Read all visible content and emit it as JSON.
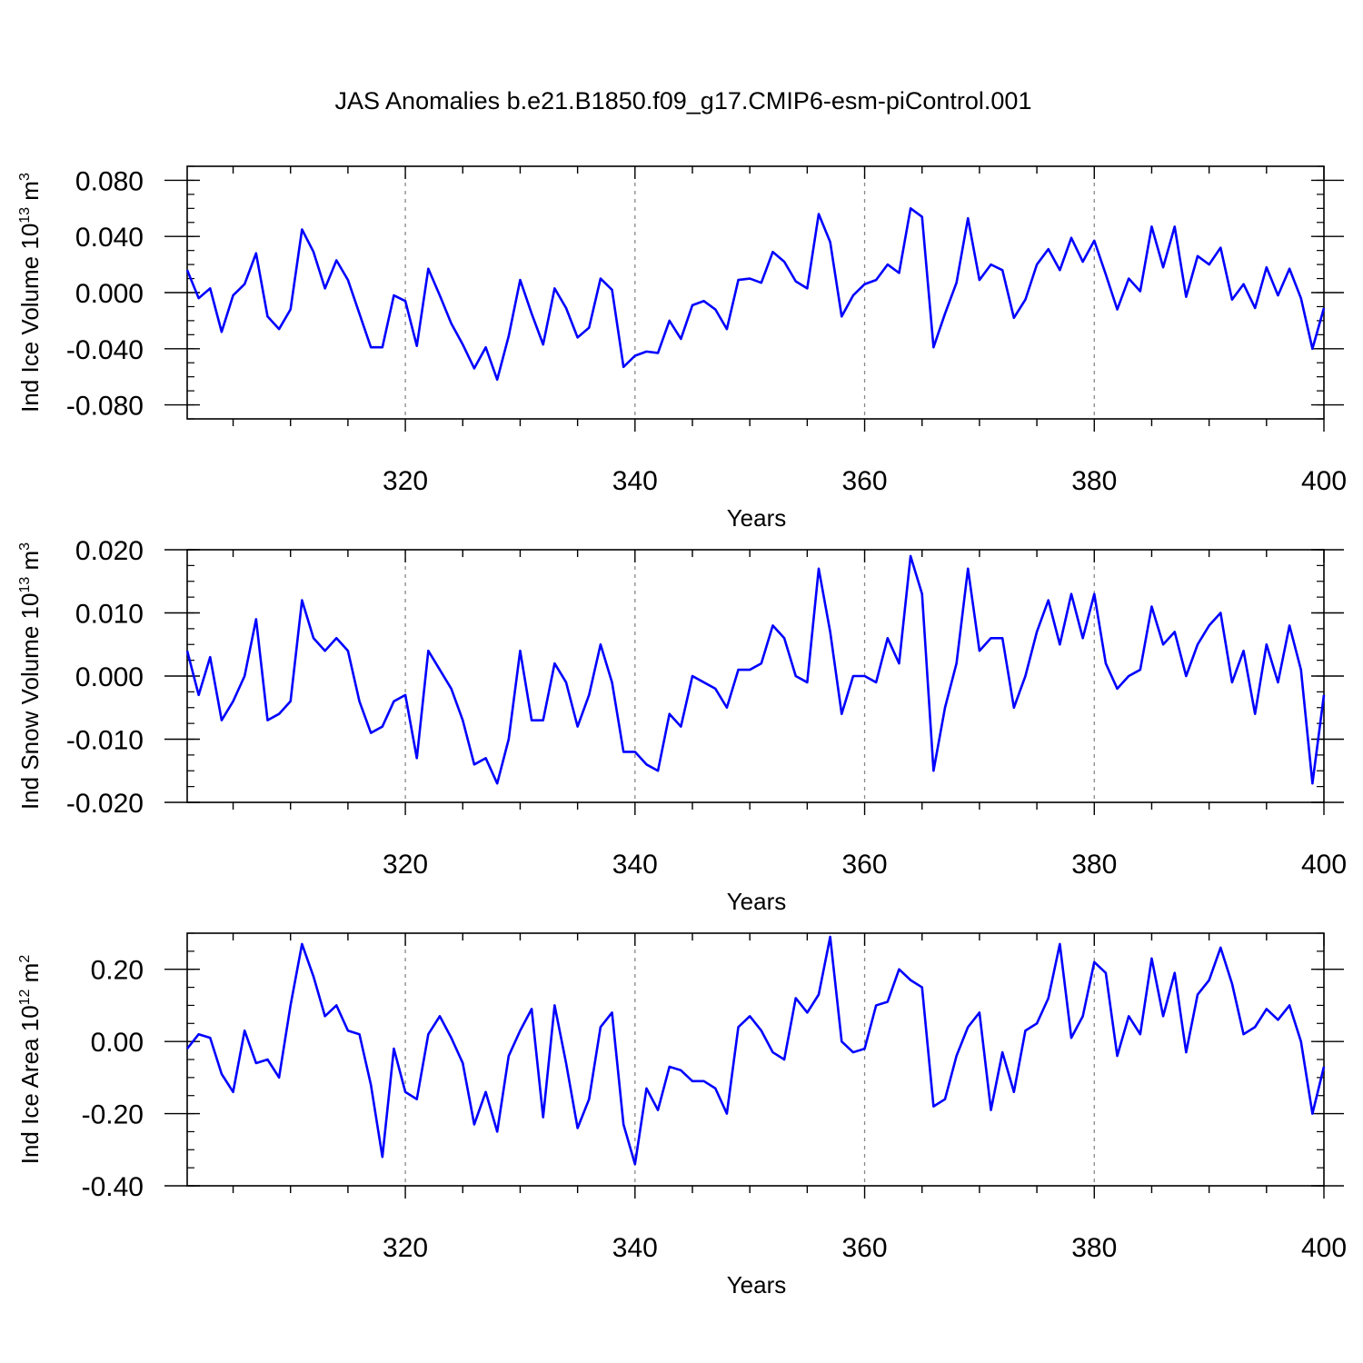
{
  "title": "JAS Anomalies b.e21.B1850.f09_g17.CMIP6-esm-piControl.001",
  "colors": {
    "series": "#0000ff",
    "frame": "#000000",
    "grid": "#888888"
  },
  "chart_data": [
    {
      "type": "line",
      "name": "ice-volume",
      "ylabel": "Ind Ice Volume 10",
      "ylabel_sup": "13",
      "ylabel_tail": " m",
      "ylabel_unit_sup": "3",
      "xlabel": "Years",
      "xlim": [
        301,
        400
      ],
      "ylim": [
        -0.09,
        0.09
      ],
      "xticks": [
        320,
        340,
        360,
        380,
        400
      ],
      "yticks": [
        -0.08,
        -0.04,
        0.0,
        0.04,
        0.08
      ],
      "ytick_labels": [
        "-0.080",
        "-0.040",
        "0.000",
        "0.040",
        "0.080"
      ],
      "grid_x": [
        320,
        340,
        360,
        380
      ],
      "series": [
        {
          "name": "Ind Ice Volume",
          "x_start": 301,
          "values": [
            0.016,
            -0.004,
            0.003,
            -0.028,
            -0.002,
            0.006,
            0.028,
            -0.017,
            -0.026,
            -0.012,
            0.045,
            0.029,
            0.003,
            0.023,
            0.009,
            -0.015,
            -0.039,
            -0.039,
            -0.002,
            -0.006,
            -0.038,
            0.017,
            -0.002,
            -0.022,
            -0.037,
            -0.054,
            -0.039,
            -0.062,
            -0.031,
            0.009,
            -0.015,
            -0.037,
            0.003,
            -0.011,
            -0.032,
            -0.025,
            0.01,
            0.002,
            -0.053,
            -0.045,
            -0.042,
            -0.043,
            -0.02,
            -0.033,
            -0.009,
            -0.006,
            -0.012,
            -0.026,
            0.009,
            0.01,
            0.007,
            0.029,
            0.022,
            0.008,
            0.003,
            0.056,
            0.036,
            -0.017,
            -0.002,
            0.006,
            0.009,
            0.02,
            0.014,
            0.06,
            0.054,
            -0.039,
            -0.015,
            0.007,
            0.053,
            0.009,
            0.02,
            0.016,
            -0.018,
            -0.005,
            0.02,
            0.031,
            0.016,
            0.039,
            0.022,
            0.037,
            0.013,
            -0.012,
            0.01,
            0.001,
            0.047,
            0.018,
            0.047,
            -0.003,
            0.026,
            0.02,
            0.032,
            -0.005,
            0.006,
            -0.011,
            0.018,
            -0.002,
            0.017,
            -0.004,
            -0.04,
            -0.011
          ]
        }
      ]
    },
    {
      "type": "line",
      "name": "snow-volume",
      "ylabel": "Ind Snow Volume 10",
      "ylabel_sup": "13",
      "ylabel_tail": " m",
      "ylabel_unit_sup": "3",
      "xlabel": "Years",
      "xlim": [
        301,
        400
      ],
      "ylim": [
        -0.02,
        0.02
      ],
      "xticks": [
        320,
        340,
        360,
        380,
        400
      ],
      "yticks": [
        -0.02,
        -0.01,
        0.0,
        0.01,
        0.02
      ],
      "ytick_labels": [
        "-0.020",
        "-0.010",
        "0.000",
        "0.010",
        "0.020"
      ],
      "grid_x": [
        320,
        340,
        360,
        380
      ],
      "series": [
        {
          "name": "Ind Snow Volume",
          "x_start": 301,
          "values": [
            0.004,
            -0.003,
            0.003,
            -0.007,
            -0.004,
            0.0,
            0.009,
            -0.007,
            -0.006,
            -0.004,
            0.012,
            0.006,
            0.004,
            0.006,
            0.004,
            -0.004,
            -0.009,
            -0.008,
            -0.004,
            -0.003,
            -0.013,
            0.004,
            0.001,
            -0.002,
            -0.007,
            -0.014,
            -0.013,
            -0.017,
            -0.01,
            0.004,
            -0.007,
            -0.007,
            0.002,
            -0.001,
            -0.008,
            -0.003,
            0.005,
            -0.001,
            -0.012,
            -0.012,
            -0.014,
            -0.015,
            -0.006,
            -0.008,
            0.0,
            -0.001,
            -0.002,
            -0.005,
            0.001,
            0.001,
            0.002,
            0.008,
            0.006,
            0.0,
            -0.001,
            0.017,
            0.007,
            -0.006,
            0.0,
            0.0,
            -0.001,
            0.006,
            0.002,
            0.019,
            0.013,
            -0.015,
            -0.005,
            0.002,
            0.017,
            0.004,
            0.006,
            0.006,
            -0.005,
            0.0,
            0.007,
            0.012,
            0.005,
            0.013,
            0.006,
            0.013,
            0.002,
            -0.002,
            0.0,
            0.001,
            0.011,
            0.005,
            0.007,
            0.0,
            0.005,
            0.008,
            0.01,
            -0.001,
            0.004,
            -0.006,
            0.005,
            -0.001,
            0.008,
            0.001,
            -0.017,
            -0.003
          ]
        }
      ]
    },
    {
      "type": "line",
      "name": "ice-area",
      "ylabel": "Ind Ice Area 10",
      "ylabel_sup": "12",
      "ylabel_tail": " m",
      "ylabel_unit_sup": "2",
      "xlabel": "Years",
      "xlim": [
        301,
        400
      ],
      "ylim": [
        -0.4,
        0.3
      ],
      "xticks": [
        320,
        340,
        360,
        380,
        400
      ],
      "yticks": [
        -0.4,
        -0.2,
        0.0,
        0.2
      ],
      "ytick_labels": [
        "-0.40",
        "-0.20",
        "0.00",
        "0.20"
      ],
      "grid_x": [
        320,
        340,
        360,
        380
      ],
      "series": [
        {
          "name": "Ind Ice Area",
          "x_start": 301,
          "values": [
            -0.02,
            0.02,
            0.01,
            -0.09,
            -0.14,
            0.03,
            -0.06,
            -0.05,
            -0.1,
            0.1,
            0.27,
            0.18,
            0.07,
            0.1,
            0.03,
            0.02,
            -0.12,
            -0.32,
            -0.02,
            -0.14,
            -0.16,
            0.02,
            0.07,
            0.01,
            -0.06,
            -0.23,
            -0.14,
            -0.25,
            -0.04,
            0.03,
            0.09,
            -0.21,
            0.1,
            -0.06,
            -0.24,
            -0.16,
            0.04,
            0.08,
            -0.23,
            -0.34,
            -0.13,
            -0.19,
            -0.07,
            -0.08,
            -0.11,
            -0.11,
            -0.13,
            -0.2,
            0.04,
            0.07,
            0.03,
            -0.03,
            -0.05,
            0.12,
            0.08,
            0.13,
            0.29,
            0.0,
            -0.03,
            -0.02,
            0.1,
            0.11,
            0.2,
            0.17,
            0.15,
            -0.18,
            -0.16,
            -0.04,
            0.04,
            0.08,
            -0.19,
            -0.03,
            -0.14,
            0.03,
            0.05,
            0.12,
            0.27,
            0.01,
            0.07,
            0.22,
            0.19,
            -0.04,
            0.07,
            0.02,
            0.23,
            0.07,
            0.19,
            -0.03,
            0.13,
            0.17,
            0.26,
            0.16,
            0.02,
            0.04,
            0.09,
            0.06,
            0.1,
            0.0,
            -0.2,
            -0.07
          ]
        }
      ]
    }
  ]
}
